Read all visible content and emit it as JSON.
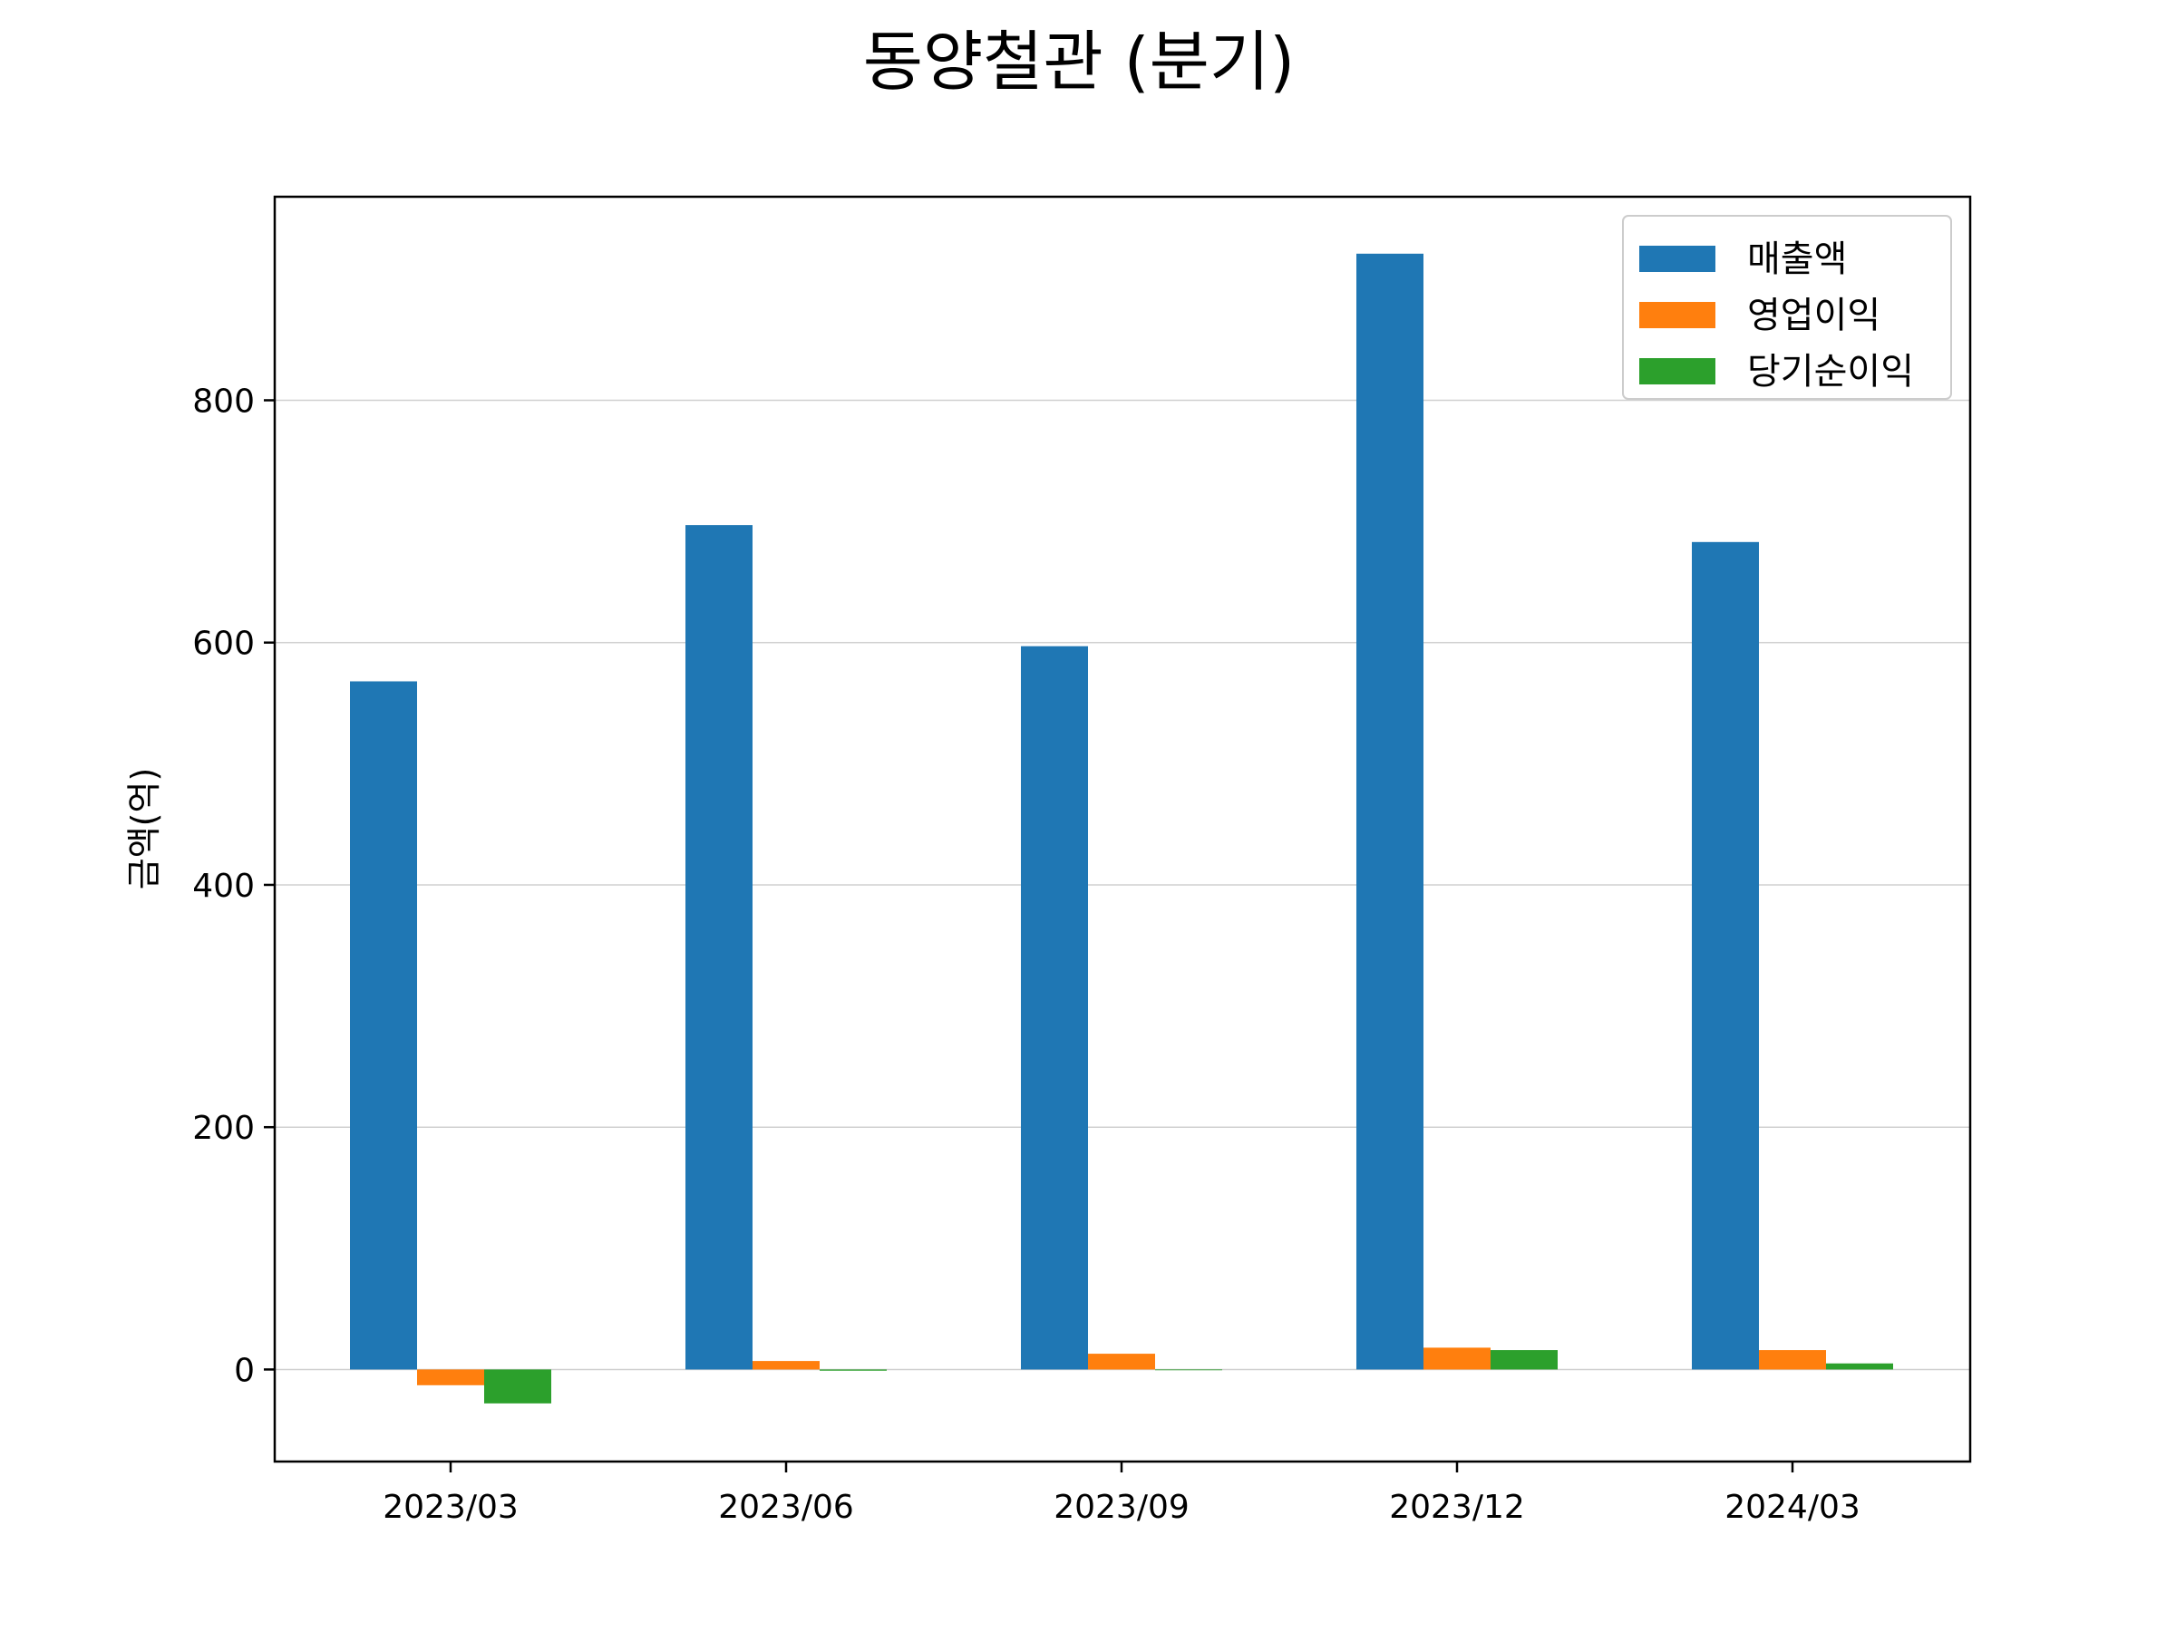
{
  "chart_data": {
    "type": "bar",
    "title": "동양철관 (분기)",
    "xlabel": "",
    "ylabel": "금액(억)",
    "categories": [
      "2023/03",
      "2023/06",
      "2023/09",
      "2023/12",
      "2024/03"
    ],
    "series": [
      {
        "name": "매출액",
        "color": "#1f77b4",
        "values": [
          568,
          697,
          597,
          921,
          683
        ]
      },
      {
        "name": "영업이익",
        "color": "#ff7f0e",
        "values": [
          -13,
          7,
          13,
          18,
          16
        ]
      },
      {
        "name": "당기순이익",
        "color": "#2ca02c",
        "values": [
          -28,
          -1,
          0,
          16,
          5
        ]
      }
    ],
    "ylim": [
      -76,
      968
    ],
    "yticks": [
      0,
      200,
      400,
      600,
      800
    ],
    "grid": "y",
    "legend": "top-right"
  }
}
